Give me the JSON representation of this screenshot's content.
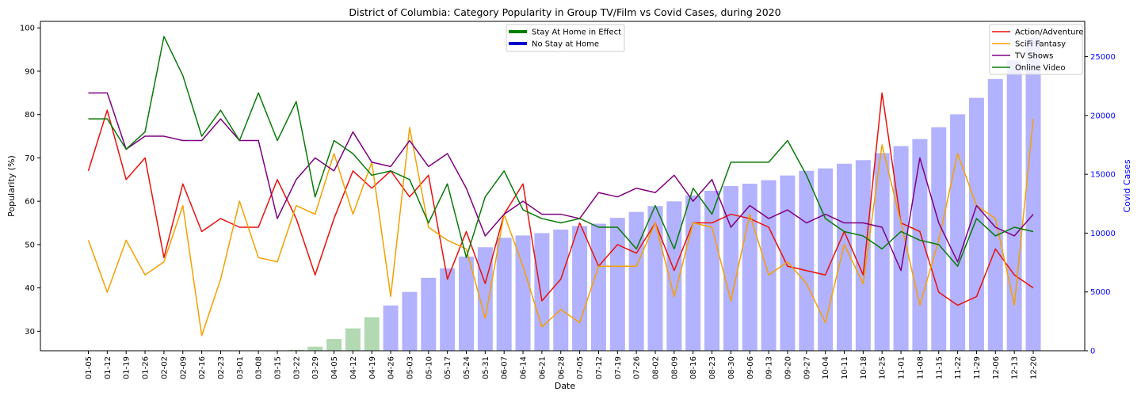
{
  "chart_data": {
    "type": "line",
    "title": "District of Columbia: Category Popularity in Group TV/Film vs Covid Cases, during 2020",
    "xlabel": "Date",
    "ylabel": "Popularity (%)",
    "y2label": "Covid Cases",
    "ylim": [
      25.5,
      101.5
    ],
    "y2lim": [
      0,
      28000
    ],
    "yticks": [
      30,
      40,
      50,
      60,
      70,
      80,
      90,
      100
    ],
    "y2ticks": [
      0,
      5000,
      10000,
      15000,
      20000,
      25000
    ],
    "grid": false,
    "categories": [
      "01-05",
      "01-12",
      "01-19",
      "01-26",
      "02-02",
      "02-09",
      "02-16",
      "02-23",
      "03-01",
      "03-08",
      "03-15",
      "03-22",
      "03-29",
      "04-05",
      "04-12",
      "04-19",
      "04-26",
      "05-03",
      "05-10",
      "05-17",
      "05-24",
      "05-31",
      "06-07",
      "06-14",
      "06-21",
      "06-28",
      "07-05",
      "07-12",
      "07-19",
      "07-26",
      "08-02",
      "08-09",
      "08-16",
      "08-23",
      "08-30",
      "09-06",
      "09-13",
      "09-20",
      "09-27",
      "10-04",
      "10-11",
      "10-18",
      "10-25",
      "11-01",
      "11-08",
      "11-15",
      "11-22",
      "11-29",
      "12-06",
      "12-13",
      "12-20"
    ],
    "series": [
      {
        "name": "Action/Adventure",
        "color": "#e8120c",
        "values": [
          67,
          81,
          65,
          70,
          47,
          64,
          53,
          56,
          54,
          54,
          65,
          56,
          43,
          56,
          67,
          63,
          67,
          61,
          66,
          42,
          53,
          41,
          57,
          64,
          37,
          42,
          55,
          45,
          50,
          48,
          55,
          44,
          55,
          55,
          57,
          56,
          54,
          45,
          44,
          43,
          53,
          43,
          85,
          55,
          53,
          39,
          36,
          38,
          49,
          43,
          40
        ]
      },
      {
        "name": "SciFi Fantasy",
        "color": "#f5a000",
        "values": [
          51,
          39,
          51,
          43,
          46,
          59,
          29,
          42,
          60,
          47,
          46,
          59,
          57,
          71,
          57,
          69,
          38,
          77,
          54,
          51,
          49,
          33,
          57,
          45,
          31,
          35,
          32,
          45,
          45,
          45,
          55,
          38,
          55,
          54,
          37,
          57,
          43,
          46,
          41,
          32,
          50,
          41,
          73,
          55,
          36,
          51,
          71,
          59,
          56,
          36,
          79
        ]
      },
      {
        "name": "TV Shows",
        "color": "#800080",
        "values": [
          85,
          85,
          72,
          75,
          75,
          74,
          74,
          79,
          74,
          74,
          56,
          65,
          70,
          67,
          76,
          69,
          68,
          74,
          68,
          71,
          63,
          52,
          57,
          60,
          57,
          57,
          56,
          62,
          61,
          63,
          62,
          66,
          60,
          65,
          54,
          59,
          56,
          58,
          55,
          57,
          55,
          55,
          54,
          44,
          70,
          55,
          46,
          59,
          54,
          52,
          57
        ]
      },
      {
        "name": "Online Video",
        "color": "#097a09",
        "values": [
          79,
          79,
          72,
          76,
          98,
          89,
          75,
          81,
          74,
          85,
          74,
          83,
          61,
          74,
          71,
          66,
          67,
          65,
          55,
          64,
          47,
          61,
          67,
          58,
          56,
          55,
          56,
          54,
          54,
          49,
          59,
          49,
          63,
          57,
          69,
          69,
          69,
          74,
          66,
          56,
          53,
          52,
          49,
          53,
          51,
          50,
          45,
          56,
          52,
          54,
          53
        ]
      }
    ],
    "bars": {
      "name": "Covid Cases",
      "stay_home_color": "#008000",
      "no_stay_color": "#0000ff",
      "values": [
        0,
        0,
        0,
        0,
        0,
        0,
        0,
        0,
        0,
        0,
        0,
        80,
        350,
        1000,
        1900,
        2850,
        3850,
        5000,
        6200,
        7000,
        8000,
        8800,
        9600,
        9800,
        10000,
        10300,
        10600,
        10800,
        11300,
        11800,
        12300,
        12700,
        13200,
        13600,
        14000,
        14200,
        14500,
        14900,
        15300,
        15500,
        15900,
        16200,
        16800,
        17400,
        18000,
        19000,
        20100,
        21500,
        23100,
        24700,
        26600
      ],
      "stay_home": [
        false,
        false,
        false,
        false,
        false,
        false,
        false,
        false,
        false,
        false,
        false,
        true,
        true,
        true,
        true,
        true,
        false,
        false,
        false,
        false,
        false,
        false,
        false,
        false,
        false,
        false,
        false,
        false,
        false,
        false,
        false,
        false,
        false,
        false,
        false,
        false,
        false,
        false,
        false,
        false,
        false,
        false,
        false,
        false,
        false,
        false,
        false,
        false,
        false,
        false,
        false
      ]
    },
    "legend_left": {
      "placement": "top-center",
      "items": [
        {
          "label": "Stay At Home in Effect",
          "color": "#008000"
        },
        {
          "label": "No Stay at Home",
          "color": "#0000cd"
        }
      ]
    },
    "legend_right": {
      "placement": "top-right"
    }
  }
}
